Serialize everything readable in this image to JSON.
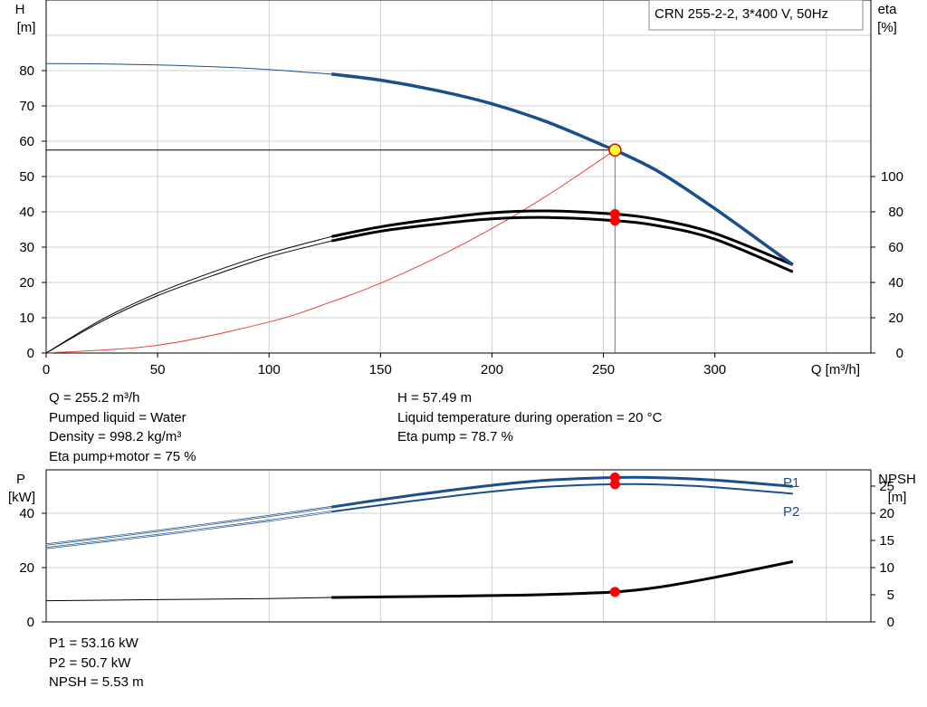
{
  "top_chart": {
    "title_box": "CRN 255-2-2, 3*400 V, 50Hz",
    "left_axis_label": "H",
    "left_axis_unit": "[m]",
    "right_axis_label": "eta",
    "right_axis_unit": "[%]",
    "x_axis_label": "Q [m³/h]"
  },
  "top_info": {
    "col1": [
      "Q = 255.2 m³/h",
      "Pumped liquid = Water",
      "Density = 998.2 kg/m³",
      "Eta pump+motor = 75 %"
    ],
    "col2": [
      "H = 57.49 m",
      "Liquid temperature during operation = 20 °C",
      "Eta pump = 78.7 %"
    ]
  },
  "bottom_chart": {
    "left_axis_label": "P",
    "left_axis_unit": "[kW]",
    "right_axis_label": "NPSH",
    "right_axis_unit": "[m]",
    "p1_label": "P1",
    "p2_label": "P2"
  },
  "bottom_info": [
    "P1 = 53.16 kW",
    "P2 = 50.7 kW",
    "NPSH = 5.53 m"
  ],
  "colors": {
    "head": "#1a4f8a",
    "system": "#e8413a",
    "eta": "#000000",
    "power": "#1a4f8a",
    "npsh": "#000000",
    "marker": "#ff0000",
    "op_point": "#ffff33",
    "grid": "#d0d0d0"
  },
  "chart_data": [
    {
      "type": "line",
      "x_ticks": [
        "0",
        "50",
        "100",
        "150",
        "200",
        "250",
        "300"
      ],
      "left_ticks": [
        "0",
        "10",
        "20",
        "30",
        "40",
        "50",
        "60",
        "70",
        "80"
      ],
      "right_ticks": [
        "0",
        "20",
        "40",
        "60",
        "80",
        "100"
      ],
      "xlim": [
        0,
        370
      ],
      "ylim": [
        0,
        100
      ],
      "y2lim": [
        0,
        200
      ],
      "duty_point": {
        "q": 255.2,
        "h": 57.49,
        "eta_pump": 78.7,
        "eta_total": 75
      },
      "series": [
        {
          "key": "head",
          "axis": "left",
          "x": [
            0,
            25,
            50,
            75,
            100,
            128,
            150,
            175,
            200,
            225,
            250,
            255.2,
            275,
            300,
            335
          ],
          "y": [
            82,
            81.9,
            81.6,
            81.1,
            80.3,
            79,
            77.3,
            74.4,
            70.6,
            65.4,
            58.8,
            57.49,
            51.3,
            40.9,
            25
          ]
        },
        {
          "key": "system",
          "axis": "left",
          "x": [
            0,
            50,
            100,
            128,
            150,
            175,
            200,
            225,
            255.2
          ],
          "y": [
            0,
            2.2,
            8.8,
            14.5,
            19.8,
            27,
            35.3,
            44.7,
            57.49
          ]
        },
        {
          "key": "eta_pump",
          "axis": "right",
          "x": [
            0,
            25,
            50,
            75,
            100,
            128,
            150,
            175,
            200,
            225,
            255.2,
            275,
            300,
            335
          ],
          "y": [
            0,
            19,
            34,
            46,
            56.5,
            66,
            71.5,
            76,
            79.5,
            80.5,
            78.7,
            75.5,
            67.8,
            50
          ]
        },
        {
          "key": "eta_total",
          "axis": "right",
          "x": [
            0,
            25,
            50,
            75,
            100,
            128,
            150,
            175,
            200,
            225,
            255.2,
            275,
            300,
            335
          ],
          "y": [
            0,
            18,
            32.5,
            44,
            54.5,
            63.5,
            69,
            73,
            76,
            76.8,
            75,
            72,
            64.5,
            46
          ]
        }
      ]
    },
    {
      "type": "line",
      "x_ticks": [
        "0",
        "50",
        "100",
        "150",
        "200",
        "250",
        "300"
      ],
      "left_ticks": [
        "0",
        "20",
        "40"
      ],
      "right_ticks": [
        "0",
        "5",
        "10",
        "15",
        "20",
        "25"
      ],
      "xlim": [
        0,
        370
      ],
      "ylim": [
        0,
        56
      ],
      "y2lim": [
        0,
        28
      ],
      "duty_point": {
        "q": 255.2,
        "p1": 53.16,
        "p2": 50.7,
        "npsh": 5.53
      },
      "series": [
        {
          "key": "p1",
          "axis": "left",
          "x": [
            0,
            50,
            100,
            128,
            150,
            175,
            200,
            225,
            255.2,
            275,
            300,
            335
          ],
          "y": [
            28.5,
            33.5,
            39,
            42.3,
            45,
            47.8,
            50.3,
            52.2,
            53.16,
            53.1,
            52.2,
            49.9
          ]
        },
        {
          "key": "p2",
          "axis": "left",
          "x": [
            0,
            50,
            100,
            128,
            150,
            175,
            200,
            225,
            255.2,
            275,
            300,
            335
          ],
          "y": [
            27.2,
            32,
            37.3,
            40.6,
            43,
            45.6,
            48,
            49.8,
            50.7,
            50.6,
            49.6,
            47.2
          ]
        },
        {
          "key": "npsh",
          "axis": "right",
          "x": [
            0,
            50,
            100,
            128,
            150,
            175,
            200,
            225,
            255.2,
            275,
            300,
            335
          ],
          "y": [
            3.9,
            4.1,
            4.3,
            4.5,
            4.6,
            4.7,
            4.85,
            5.05,
            5.53,
            6.4,
            8.2,
            11.1
          ]
        }
      ]
    }
  ]
}
